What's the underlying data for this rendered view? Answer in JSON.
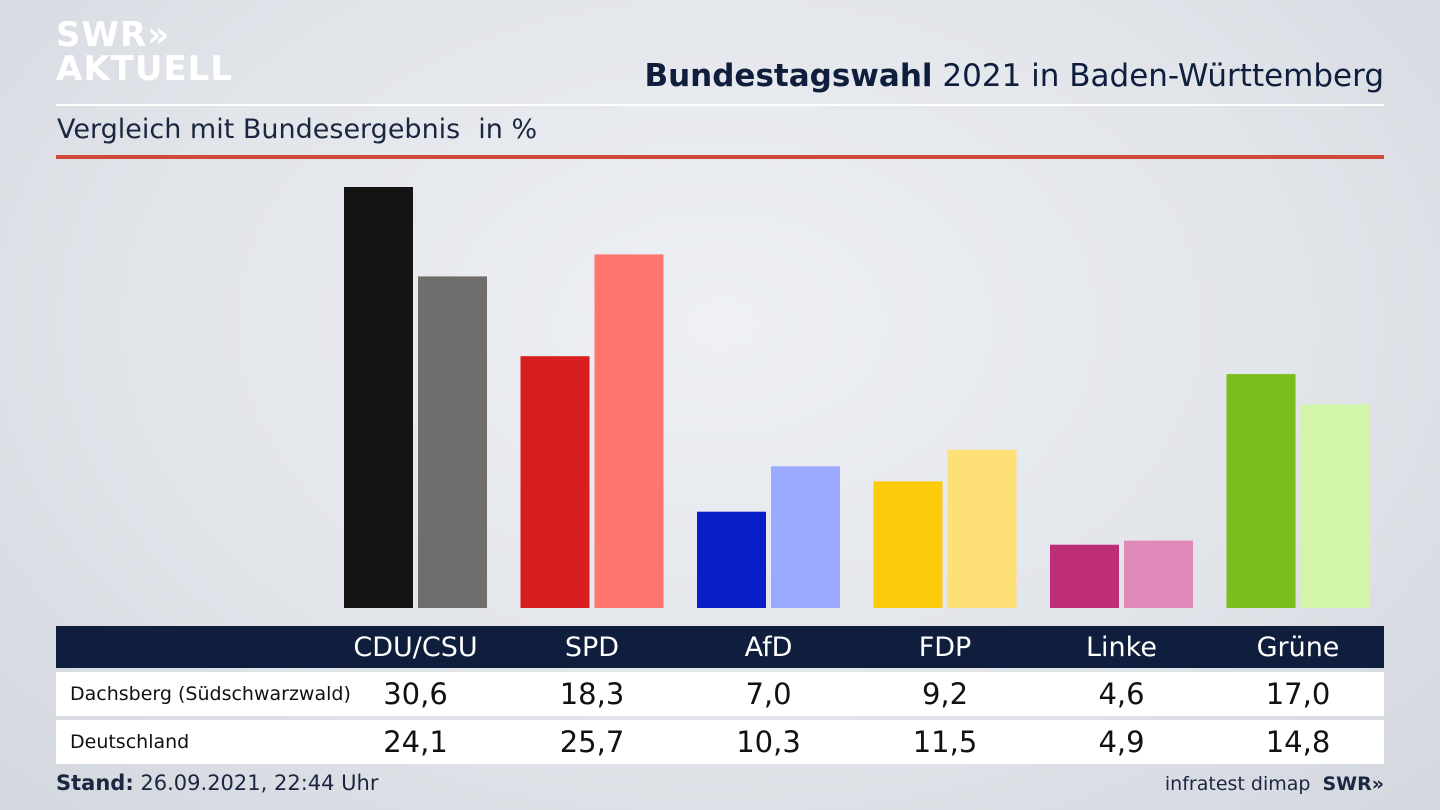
{
  "brand": {
    "logo_line1": "SWR»",
    "logo_line2": "AKTUELL",
    "footer_logo": "SWR»"
  },
  "header": {
    "title_bold": "Bundestagswahl",
    "title_rest": " 2021 in Baden-Württemberg",
    "subtitle": "Vergleich mit Bundesergebnis",
    "unit": "in %"
  },
  "colors": {
    "accent_rule": "#d04a3a",
    "table_header": "#0f1e3c"
  },
  "chart_data": {
    "type": "bar",
    "categories": [
      "CDU/CSU",
      "SPD",
      "AfD",
      "FDP",
      "Linke",
      "Grüne"
    ],
    "series": [
      {
        "name": "Dachsberg (Südschwarzwald)",
        "values": [
          30.6,
          18.3,
          7.0,
          9.2,
          4.6,
          17.0
        ],
        "labels": [
          "30,6",
          "18,3",
          "7,0",
          "9,2",
          "4,6",
          "17,0"
        ],
        "colors": [
          "#141414",
          "#d71f1f",
          "#0a1ec8",
          "#fccc0a",
          "#be2e76",
          "#78be1e"
        ]
      },
      {
        "name": "Deutschland",
        "values": [
          24.1,
          25.7,
          10.3,
          11.5,
          4.9,
          14.8
        ],
        "labels": [
          "24,1",
          "25,7",
          "10,3",
          "11,5",
          "4,9",
          "14,8"
        ],
        "colors": [
          "#706e6c",
          "#ff7670",
          "#9baaff",
          "#ffe076",
          "#e088b8",
          "#d2f5a8"
        ]
      }
    ],
    "ylim": [
      0,
      30.6
    ],
    "grid": false,
    "legend": "table-below"
  },
  "footer": {
    "stand_label": "Stand:",
    "stand_value": " 26.09.2021, 22:44 Uhr",
    "source": "infratest dimap"
  }
}
